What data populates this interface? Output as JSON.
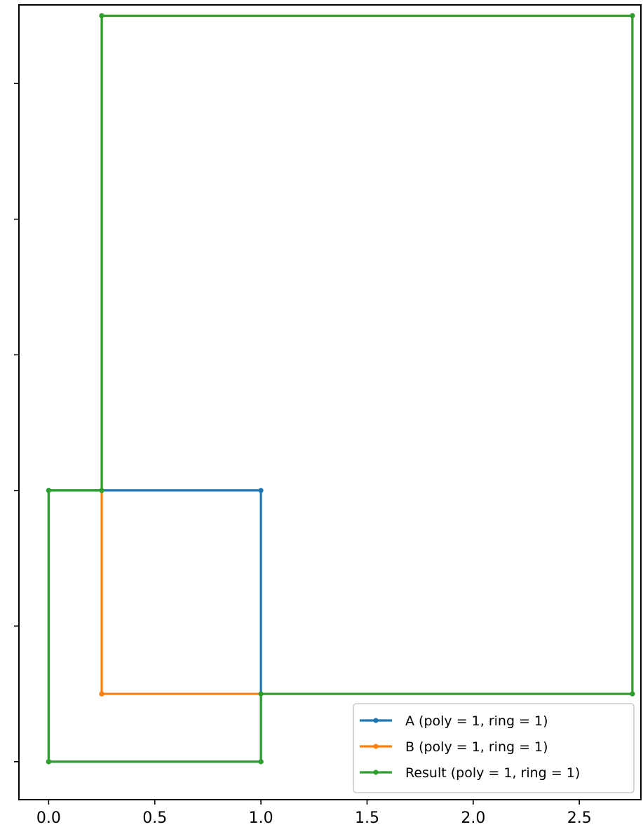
{
  "chart_data": {
    "type": "line",
    "title": "",
    "xlabel": "",
    "ylabel": "",
    "xlim": [
      -0.14,
      2.79
    ],
    "ylim": [
      -0.28,
      5.58
    ],
    "x_ticks": [
      0.0,
      0.5,
      1.0,
      1.5,
      2.0,
      2.5
    ],
    "x_tick_labels": [
      "0.0",
      "0.5",
      "1.0",
      "1.5",
      "2.0",
      "2.5"
    ],
    "y_ticks": [
      0,
      1,
      2,
      3,
      4,
      5
    ],
    "legend_position": "lower-right",
    "grid": false,
    "series": [
      {
        "name": "A (poly = 1, ring = 1)",
        "color": "#1f77b4",
        "points": [
          [
            0.0,
            0.0
          ],
          [
            0.0,
            2.0
          ],
          [
            1.0,
            2.0
          ],
          [
            1.0,
            0.0
          ],
          [
            0.0,
            0.0
          ]
        ]
      },
      {
        "name": "B (poly = 1, ring = 1)",
        "color": "#ff7f0e",
        "points": [
          [
            0.25,
            0.5
          ],
          [
            0.25,
            5.5
          ],
          [
            2.75,
            5.5
          ],
          [
            2.75,
            0.5
          ],
          [
            0.25,
            0.5
          ]
        ]
      },
      {
        "name": "Result (poly = 1, ring = 1)",
        "color": "#2ca02c",
        "points": [
          [
            0.0,
            0.0
          ],
          [
            0.0,
            2.0
          ],
          [
            0.25,
            2.0
          ],
          [
            0.25,
            5.5
          ],
          [
            2.75,
            5.5
          ],
          [
            2.75,
            0.5
          ],
          [
            1.0,
            0.5
          ],
          [
            1.0,
            0.0
          ],
          [
            0.0,
            0.0
          ]
        ]
      }
    ]
  }
}
